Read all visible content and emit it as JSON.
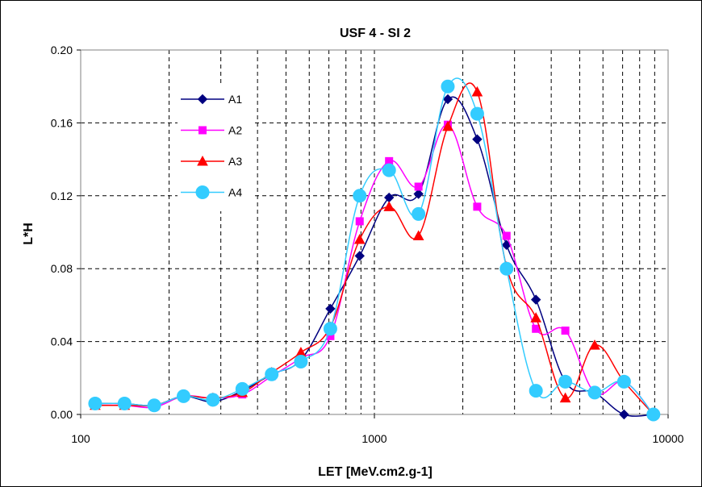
{
  "chart_data": {
    "type": "line",
    "title": "USF 4 - SI 2",
    "xlabel": "LET [MeV.cm2.g-1]",
    "ylabel": "L*H",
    "x_scale": "log",
    "xlim": [
      100,
      10000
    ],
    "ylim": [
      0,
      0.2
    ],
    "x_tick_labels": [
      "100",
      "1000",
      "10000"
    ],
    "y_tick_labels": [
      "0.00",
      "0.04",
      "0.08",
      "0.12",
      "0.16",
      "0.20"
    ],
    "grid": true,
    "legend_position": "top-left",
    "x": [
      112,
      141,
      178,
      224,
      282,
      355,
      447,
      562,
      708,
      891,
      1122,
      1413,
      1778,
      2239,
      2818,
      3548,
      4467,
      5623,
      7079,
      8913
    ],
    "series": [
      {
        "name": "A1",
        "color": "#000080",
        "marker": "diamond",
        "values": [
          0.006,
          0.006,
          0.005,
          0.01,
          0.007,
          0.013,
          0.022,
          0.03,
          0.058,
          0.087,
          0.119,
          0.121,
          0.173,
          0.151,
          0.093,
          0.063,
          0.018,
          0.012,
          0.0,
          0.0
        ]
      },
      {
        "name": "A2",
        "color": "#ff00ff",
        "marker": "square",
        "values": [
          0.005,
          0.005,
          0.004,
          0.01,
          0.009,
          0.011,
          0.021,
          0.031,
          0.043,
          0.106,
          0.139,
          0.125,
          0.159,
          0.114,
          0.098,
          0.047,
          0.046,
          0.012,
          0.018,
          0.0
        ]
      },
      {
        "name": "A3",
        "color": "#ff0000",
        "marker": "triangle",
        "values": [
          0.005,
          0.005,
          0.005,
          0.01,
          0.009,
          0.012,
          0.023,
          0.034,
          0.048,
          0.096,
          0.114,
          0.098,
          0.158,
          0.177,
          0.081,
          0.053,
          0.009,
          0.038,
          0.018,
          0.0
        ]
      },
      {
        "name": "A4",
        "color": "#33ccff",
        "marker": "circle",
        "values": [
          0.006,
          0.006,
          0.005,
          0.01,
          0.008,
          0.014,
          0.022,
          0.029,
          0.047,
          0.12,
          0.134,
          0.11,
          0.18,
          0.165,
          0.08,
          0.013,
          0.018,
          0.012,
          0.018,
          0.0
        ]
      }
    ]
  }
}
